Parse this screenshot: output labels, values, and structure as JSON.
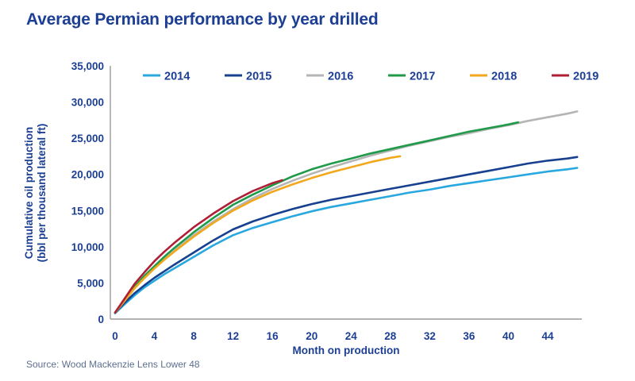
{
  "title": "Average Permian performance by year drilled",
  "source": "Source: Wood Mackenzie Lens Lower 48",
  "colors": {
    "text_navy": "#1C3F94",
    "axis_gray": "#9A9A9A",
    "source_gray": "#5C6F91"
  },
  "chart_data": {
    "type": "line",
    "title": "Average Permian performance by year drilled",
    "xlabel": "Month on production",
    "ylabel": "Cumulative oil production (bbl per thousand lateral ft)",
    "ylabel_lines": [
      "Cumulative oil production",
      "(bbl per thousand lateral ft)"
    ],
    "xlim": [
      0,
      48
    ],
    "ylim": [
      0,
      35000
    ],
    "grid": false,
    "legend_position": "top",
    "x_ticks": [
      0,
      4,
      8,
      12,
      16,
      20,
      24,
      28,
      32,
      36,
      40,
      44
    ],
    "y_ticks": [
      0,
      5000,
      10000,
      15000,
      20000,
      25000,
      30000,
      35000
    ],
    "y_tick_labels": [
      "0",
      "5,000",
      "10,000",
      "15,000",
      "20,000",
      "25,000",
      "30,000",
      "35,000"
    ],
    "series": [
      {
        "name": "2014",
        "color": "#29A8E0",
        "points": [
          [
            0,
            800
          ],
          [
            1,
            2100
          ],
          [
            2,
            3300
          ],
          [
            3,
            4400
          ],
          [
            4,
            5300
          ],
          [
            5,
            6200
          ],
          [
            6,
            7000
          ],
          [
            8,
            8600
          ],
          [
            10,
            10200
          ],
          [
            12,
            11600
          ],
          [
            14,
            12600
          ],
          [
            16,
            13400
          ],
          [
            18,
            14200
          ],
          [
            20,
            14900
          ],
          [
            22,
            15500
          ],
          [
            24,
            16000
          ],
          [
            26,
            16500
          ],
          [
            28,
            17000
          ],
          [
            30,
            17500
          ],
          [
            32,
            17900
          ],
          [
            34,
            18400
          ],
          [
            36,
            18800
          ],
          [
            38,
            19200
          ],
          [
            40,
            19600
          ],
          [
            42,
            20000
          ],
          [
            44,
            20400
          ],
          [
            46,
            20700
          ],
          [
            47,
            20900
          ]
        ]
      },
      {
        "name": "2015",
        "color": "#17418F",
        "points": [
          [
            0,
            900
          ],
          [
            1,
            2300
          ],
          [
            2,
            3600
          ],
          [
            3,
            4700
          ],
          [
            4,
            5700
          ],
          [
            5,
            6600
          ],
          [
            6,
            7500
          ],
          [
            8,
            9200
          ],
          [
            10,
            10900
          ],
          [
            12,
            12400
          ],
          [
            14,
            13500
          ],
          [
            16,
            14400
          ],
          [
            18,
            15200
          ],
          [
            20,
            15900
          ],
          [
            22,
            16500
          ],
          [
            24,
            17000
          ],
          [
            26,
            17500
          ],
          [
            28,
            18000
          ],
          [
            30,
            18500
          ],
          [
            32,
            19000
          ],
          [
            34,
            19500
          ],
          [
            36,
            20000
          ],
          [
            38,
            20500
          ],
          [
            40,
            21000
          ],
          [
            42,
            21500
          ],
          [
            44,
            21900
          ],
          [
            46,
            22200
          ],
          [
            47,
            22400
          ]
        ]
      },
      {
        "name": "2016",
        "color": "#B5B5B5",
        "points": [
          [
            0,
            900
          ],
          [
            1,
            2600
          ],
          [
            2,
            4300
          ],
          [
            3,
            5700
          ],
          [
            4,
            7000
          ],
          [
            5,
            8200
          ],
          [
            6,
            9400
          ],
          [
            8,
            11600
          ],
          [
            10,
            13500
          ],
          [
            12,
            15200
          ],
          [
            14,
            16700
          ],
          [
            16,
            18000
          ],
          [
            18,
            19100
          ],
          [
            20,
            20100
          ],
          [
            22,
            21000
          ],
          [
            24,
            21800
          ],
          [
            26,
            22600
          ],
          [
            28,
            23300
          ],
          [
            30,
            24000
          ],
          [
            32,
            24600
          ],
          [
            34,
            25200
          ],
          [
            36,
            25700
          ],
          [
            38,
            26300
          ],
          [
            40,
            26800
          ],
          [
            42,
            27400
          ],
          [
            44,
            27900
          ],
          [
            46,
            28400
          ],
          [
            47,
            28700
          ]
        ]
      },
      {
        "name": "2017",
        "color": "#1F9A49",
        "points": [
          [
            0,
            900
          ],
          [
            1,
            2700
          ],
          [
            2,
            4500
          ],
          [
            3,
            6000
          ],
          [
            4,
            7300
          ],
          [
            5,
            8600
          ],
          [
            6,
            9800
          ],
          [
            8,
            12000
          ],
          [
            10,
            14000
          ],
          [
            12,
            15800
          ],
          [
            14,
            17200
          ],
          [
            16,
            18500
          ],
          [
            18,
            19700
          ],
          [
            20,
            20700
          ],
          [
            22,
            21500
          ],
          [
            24,
            22200
          ],
          [
            26,
            22900
          ],
          [
            28,
            23500
          ],
          [
            30,
            24100
          ],
          [
            32,
            24700
          ],
          [
            34,
            25300
          ],
          [
            36,
            25900
          ],
          [
            38,
            26400
          ],
          [
            40,
            26900
          ],
          [
            41,
            27200
          ]
        ]
      },
      {
        "name": "2018",
        "color": "#F2A81D",
        "points": [
          [
            0,
            900
          ],
          [
            1,
            2600
          ],
          [
            2,
            4300
          ],
          [
            3,
            5700
          ],
          [
            4,
            7000
          ],
          [
            5,
            8200
          ],
          [
            6,
            9300
          ],
          [
            8,
            11400
          ],
          [
            10,
            13300
          ],
          [
            12,
            15000
          ],
          [
            14,
            16400
          ],
          [
            16,
            17600
          ],
          [
            18,
            18600
          ],
          [
            20,
            19500
          ],
          [
            22,
            20300
          ],
          [
            24,
            21000
          ],
          [
            26,
            21700
          ],
          [
            28,
            22300
          ],
          [
            29,
            22500
          ]
        ]
      },
      {
        "name": "2019",
        "color": "#B01E36",
        "points": [
          [
            0,
            900
          ],
          [
            1,
            2900
          ],
          [
            2,
            4900
          ],
          [
            3,
            6500
          ],
          [
            4,
            8000
          ],
          [
            5,
            9300
          ],
          [
            6,
            10500
          ],
          [
            8,
            12700
          ],
          [
            10,
            14600
          ],
          [
            12,
            16300
          ],
          [
            14,
            17700
          ],
          [
            16,
            18800
          ],
          [
            17,
            19200
          ]
        ]
      }
    ]
  }
}
